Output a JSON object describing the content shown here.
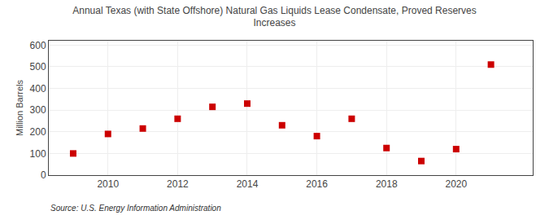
{
  "chart_data": {
    "type": "scatter",
    "title": "Annual Texas (with State Offshore) Natural Gas Liquids Lease Condensate, Proved Reserves\nIncreases",
    "ylabel": "Million Barrels",
    "annotation": "Source: U.S. Energy Information Administration",
    "x": [
      2009,
      2010,
      2011,
      2012,
      2013,
      2014,
      2015,
      2016,
      2017,
      2018,
      2019,
      2020,
      2021
    ],
    "values": [
      100,
      190,
      215,
      260,
      315,
      330,
      230,
      180,
      260,
      125,
      65,
      120,
      510
    ],
    "xlim": [
      2008.3,
      2022.2
    ],
    "ylim": [
      0,
      620
    ],
    "xticks": [
      2010,
      2012,
      2014,
      2016,
      2018,
      2020
    ],
    "yticks": [
      0,
      100,
      200,
      300,
      400,
      500,
      600
    ],
    "color": "#cc0000",
    "marker": "square",
    "grid": true
  }
}
